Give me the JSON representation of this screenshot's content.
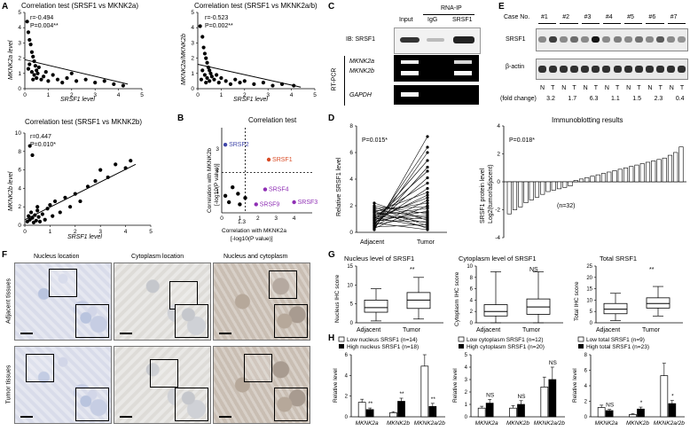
{
  "panels": {
    "A": {
      "letter": "A",
      "plot1": {
        "title": "Correlation test (SRSF1 vs MKNK2a)",
        "r": "r=-0.494",
        "p": "P=0.004**",
        "ylabel": "MKNK2a level",
        "xlabel": "SRSF1 level"
      },
      "plot2": {
        "title": "Correlation test (SRSF1 vs MKNK2a/b)",
        "r": "r=-0.523",
        "p": "P=0.002**",
        "ylabel": "MKNK2a/MKNK2b",
        "xlabel": "SRSF1 level"
      },
      "plot3": {
        "title": "Correlation test (SRSF1 vs MKNK2b)",
        "r": "r=0.447",
        "p": "P=0.010*",
        "ylabel": "MKNK2b level",
        "xlabel": "SRSF1 level"
      }
    },
    "B": {
      "letter": "B",
      "title": "Correlation test",
      "xlabel1": "Correlation with MKNK2a",
      "xlabel2": "[-log10(P value)]",
      "ylabel1": "Correlation with MKNK2b",
      "ylabel2": "[-log10(P value)]",
      "tick13": "1.3"
    },
    "C": {
      "letter": "C",
      "rnaip": "RNA-IP",
      "col_input": "Input",
      "col_igg": "IgG",
      "col_srsf1": "SRSF1",
      "ib": "IB: SRSF1",
      "rtpcr": "RT-PCR",
      "mknk2a": "MKNK2a",
      "mknk2b": "MKNK2b",
      "gapdh": "GAPDH"
    },
    "D": {
      "letter": "D",
      "p": "P=0.015*",
      "ylabel": "Relative SRSF1 level",
      "x1": "Adjacent",
      "x2": "Tumor",
      "bar_title": "Immunoblotting results",
      "bar_p": "P=0.018*",
      "bar_n": "(n=32)",
      "bar_ylabel1": "SRSF1 protein level",
      "bar_ylabel2": "Log2(tumor/adjacent)"
    },
    "E": {
      "letter": "E",
      "case_label": "Case No.",
      "cases": [
        "#1",
        "#2",
        "#3",
        "#4",
        "#5",
        "#6",
        "#7"
      ],
      "srsf1": "SRSF1",
      "actin": "β-actin",
      "fold_label": "(fold change)",
      "folds": [
        "3.2",
        "1.7",
        "6.3",
        "1.1",
        "1.5",
        "2.3",
        "0.4"
      ],
      "nt": [
        "N",
        "T"
      ]
    },
    "F": {
      "letter": "F",
      "cols": [
        "Nucleus location",
        "Cytoplasm location",
        "Nucleus and cytoplasm"
      ],
      "rows": [
        "Adjacent tissues",
        "Tumor tissues"
      ]
    },
    "G": {
      "letter": "G",
      "plots": [
        {
          "title": "Nucleus level of SRSF1",
          "ylabel": "Nucleus IHC score",
          "sig": "**"
        },
        {
          "title": "Cytoplasm level of SRSF1",
          "ylabel": "Cytoplasm IHC score",
          "sig": "NS"
        },
        {
          "title": "Total SRSF1",
          "ylabel": "Total IHC score",
          "sig": "**"
        }
      ],
      "x1": "Adjacent",
      "x2": "Tumor"
    },
    "H": {
      "letter": "H",
      "ylabel": "Relative level",
      "cats": [
        "MKNK2a",
        "MKNK2b",
        "MKNK2a/2b"
      ],
      "plots": [
        {
          "low": "Low nucleus SRSF1 (n=14)",
          "high": "High nucleus SRSF1 (n=18)",
          "sigs": [
            "**",
            "**",
            "**"
          ]
        },
        {
          "low": "Low cytoplasm SRSF1 (n=12)",
          "high": "High cytoplasm SRSF1 (n=20)",
          "sigs": [
            "NS",
            "NS",
            "NS"
          ]
        },
        {
          "low": "Low total SRSF1 (n=9)",
          "high": "High total SRSF1 (n=23)",
          "sigs": [
            "NS",
            "*",
            "*"
          ]
        }
      ]
    }
  },
  "chart_data": [
    {
      "type": "scatter",
      "name": "A1",
      "xlim": [
        0,
        5
      ],
      "ylim": [
        0,
        5
      ],
      "points": [
        [
          0.1,
          4.4
        ],
        [
          0.15,
          3.7
        ],
        [
          0.2,
          3.2
        ],
        [
          0.25,
          2.9
        ],
        [
          0.3,
          2.4
        ],
        [
          0.35,
          2.1
        ],
        [
          0.4,
          1.8
        ],
        [
          0.45,
          1.5
        ],
        [
          0.5,
          1.2
        ],
        [
          0.55,
          1.0
        ],
        [
          0.6,
          1.4
        ],
        [
          0.2,
          1.6
        ],
        [
          0.3,
          1.1
        ],
        [
          0.4,
          0.9
        ],
        [
          0.5,
          0.7
        ],
        [
          0.7,
          0.6
        ],
        [
          0.8,
          0.8
        ],
        [
          0.9,
          1.1
        ],
        [
          1.0,
          0.5
        ],
        [
          1.2,
          0.9
        ],
        [
          1.4,
          0.6
        ],
        [
          1.6,
          0.4
        ],
        [
          1.8,
          0.7
        ],
        [
          2.0,
          1.0
        ],
        [
          2.2,
          0.5
        ],
        [
          2.6,
          0.6
        ],
        [
          3.0,
          0.4
        ],
        [
          3.4,
          0.5
        ],
        [
          3.8,
          0.3
        ],
        [
          4.2,
          0.2
        ],
        [
          0.15,
          1.3
        ],
        [
          0.35,
          0.6
        ]
      ],
      "fit": [
        [
          0,
          1.9
        ],
        [
          4.4,
          0.3
        ]
      ]
    },
    {
      "type": "scatter",
      "name": "A2",
      "xlim": [
        0,
        5
      ],
      "ylim": [
        0,
        5
      ],
      "points": [
        [
          0.1,
          4.1
        ],
        [
          0.2,
          3.4
        ],
        [
          0.25,
          2.7
        ],
        [
          0.3,
          2.3
        ],
        [
          0.35,
          2.0
        ],
        [
          0.4,
          1.7
        ],
        [
          0.45,
          1.4
        ],
        [
          0.5,
          1.2
        ],
        [
          0.55,
          1.0
        ],
        [
          0.6,
          0.8
        ],
        [
          0.2,
          1.2
        ],
        [
          0.3,
          0.9
        ],
        [
          0.4,
          0.7
        ],
        [
          0.5,
          0.5
        ],
        [
          0.7,
          0.6
        ],
        [
          0.8,
          0.9
        ],
        [
          0.9,
          0.4
        ],
        [
          1.0,
          0.7
        ],
        [
          1.2,
          0.5
        ],
        [
          1.4,
          0.3
        ],
        [
          1.6,
          0.6
        ],
        [
          1.8,
          0.4
        ],
        [
          2.0,
          0.5
        ],
        [
          2.4,
          0.3
        ],
        [
          2.8,
          0.4
        ],
        [
          3.2,
          0.2
        ],
        [
          3.6,
          0.3
        ],
        [
          4.1,
          0.2
        ],
        [
          0.15,
          0.6
        ],
        [
          0.35,
          0.4
        ]
      ],
      "fit": [
        [
          0,
          1.6
        ],
        [
          4.4,
          0.1
        ]
      ]
    },
    {
      "type": "scatter",
      "name": "A3",
      "xlim": [
        0,
        5
      ],
      "ylim": [
        0,
        10
      ],
      "points": [
        [
          0.1,
          0.4
        ],
        [
          0.15,
          1.0
        ],
        [
          0.2,
          0.6
        ],
        [
          0.25,
          1.4
        ],
        [
          0.3,
          0.8
        ],
        [
          0.35,
          0.3
        ],
        [
          0.4,
          1.1
        ],
        [
          0.45,
          0.5
        ],
        [
          0.5,
          1.6
        ],
        [
          0.55,
          0.9
        ],
        [
          0.6,
          0.4
        ],
        [
          0.7,
          1.2
        ],
        [
          0.8,
          0.6
        ],
        [
          0.9,
          1.8
        ],
        [
          1.0,
          2.2
        ],
        [
          1.1,
          1.0
        ],
        [
          1.2,
          2.6
        ],
        [
          1.4,
          1.4
        ],
        [
          1.6,
          3.0
        ],
        [
          1.8,
          2.0
        ],
        [
          2.0,
          3.4
        ],
        [
          2.2,
          2.6
        ],
        [
          2.5,
          4.2
        ],
        [
          2.8,
          4.8
        ],
        [
          3.0,
          6.0
        ],
        [
          3.3,
          5.2
        ],
        [
          3.6,
          6.6
        ],
        [
          4.0,
          6.2
        ],
        [
          4.2,
          7.0
        ],
        [
          0.2,
          8.6
        ],
        [
          0.3,
          7.6
        ],
        [
          0.5,
          2.0
        ]
      ],
      "fit": [
        [
          0,
          0.6
        ],
        [
          4.4,
          6.6
        ]
      ]
    },
    {
      "type": "scatter",
      "name": "B",
      "xlim": [
        0,
        5
      ],
      "ylim": [
        0,
        4
      ],
      "points": [
        {
          "label": "SRSF2",
          "x": 0.2,
          "y": 3.2,
          "color": "#3f45a8"
        },
        {
          "label": "SRSF1",
          "x": 2.6,
          "y": 2.5,
          "color": "#d94b25"
        },
        {
          "label": "SRSF4",
          "x": 2.4,
          "y": 1.1,
          "color": "#8f2fb4"
        },
        {
          "label": "SRSF9",
          "x": 1.9,
          "y": 0.4,
          "color": "#8f2fb4"
        },
        {
          "label": "SRSF3",
          "x": 4.0,
          "y": 0.5,
          "color": "#8f2fb4"
        },
        {
          "x": 0.6,
          "y": 1.2,
          "color": "#000000"
        },
        {
          "x": 0.9,
          "y": 0.9,
          "color": "#000000"
        },
        {
          "x": 1.3,
          "y": 0.7,
          "color": "#000000"
        },
        {
          "x": 0.4,
          "y": 0.5,
          "color": "#000000"
        },
        {
          "x": 1.0,
          "y": 0.4,
          "color": "#000000"
        },
        {
          "x": 0.2,
          "y": 0.8,
          "color": "#000000"
        }
      ],
      "cutoff": [
        1.3,
        1.3
      ]
    },
    {
      "type": "paired-line",
      "name": "D1",
      "ylim": [
        0,
        8
      ],
      "x": [
        "Adjacent",
        "Tumor"
      ],
      "pairs": [
        [
          0.2,
          7.2
        ],
        [
          0.5,
          6.4
        ],
        [
          0.3,
          6.0
        ],
        [
          0.8,
          5.4
        ],
        [
          0.4,
          4.9
        ],
        [
          1.0,
          4.6
        ],
        [
          0.6,
          4.1
        ],
        [
          1.2,
          3.7
        ],
        [
          0.7,
          3.3
        ],
        [
          1.5,
          3.0
        ],
        [
          0.9,
          2.8
        ],
        [
          1.1,
          2.6
        ],
        [
          0.5,
          2.4
        ],
        [
          1.6,
          2.2
        ],
        [
          0.3,
          2.0
        ],
        [
          1.8,
          1.9
        ],
        [
          1.3,
          1.8
        ],
        [
          0.8,
          1.6
        ],
        [
          1.4,
          1.5
        ],
        [
          2.0,
          1.4
        ],
        [
          1.0,
          1.3
        ],
        [
          0.6,
          1.2
        ],
        [
          1.7,
          1.1
        ],
        [
          1.2,
          1.0
        ],
        [
          2.2,
          0.9
        ],
        [
          0.9,
          0.8
        ],
        [
          1.5,
          0.7
        ],
        [
          0.4,
          0.6
        ],
        [
          1.9,
          0.5
        ],
        [
          1.1,
          0.4
        ],
        [
          1.6,
          0.3
        ],
        [
          0.7,
          0.2
        ]
      ]
    },
    {
      "type": "bar",
      "name": "D2",
      "ylim": [
        -4,
        4
      ],
      "values": [
        -2.3,
        -2.0,
        -1.8,
        -1.5,
        -1.3,
        -1.1,
        -0.9,
        -0.7,
        -0.6,
        -0.5,
        -0.4,
        -0.3,
        0.1,
        0.2,
        0.3,
        0.4,
        0.5,
        0.6,
        0.7,
        0.8,
        0.9,
        1.0,
        1.1,
        1.2,
        1.3,
        1.4,
        1.5,
        1.6,
        1.7,
        1.9,
        2.1,
        2.5
      ]
    },
    {
      "type": "box",
      "name": "G1",
      "ylim": [
        0,
        15
      ],
      "yticks": [
        0,
        5,
        10,
        15
      ],
      "boxes": [
        {
          "min": 0.5,
          "q1": 2.8,
          "med": 4.0,
          "q3": 6.0,
          "max": 9.0
        },
        {
          "min": 1.0,
          "q1": 3.8,
          "med": 6.0,
          "q3": 8.0,
          "max": 12.0
        }
      ]
    },
    {
      "type": "box",
      "name": "G2",
      "ylim": [
        0,
        10
      ],
      "yticks": [
        0,
        2,
        4,
        6,
        8,
        10
      ],
      "boxes": [
        {
          "min": 0.0,
          "q1": 1.2,
          "med": 2.0,
          "q3": 3.2,
          "max": 9.0
        },
        {
          "min": 0.0,
          "q1": 1.5,
          "med": 2.8,
          "q3": 4.2,
          "max": 9.0
        }
      ]
    },
    {
      "type": "box",
      "name": "G3",
      "ylim": [
        0,
        25
      ],
      "yticks": [
        0,
        5,
        10,
        15,
        20,
        25
      ],
      "boxes": [
        {
          "min": 1.0,
          "q1": 4.0,
          "med": 6.0,
          "q3": 8.5,
          "max": 13.0
        },
        {
          "min": 3.0,
          "q1": 6.5,
          "med": 8.5,
          "q3": 11.0,
          "max": 16.0
        }
      ]
    },
    {
      "type": "bar",
      "name": "H1",
      "ylim": [
        0,
        6
      ],
      "yticks": [
        0,
        2,
        4,
        6
      ],
      "categories": [
        "MKNK2a",
        "MKNK2b",
        "MKNK2a/2b"
      ],
      "series": [
        {
          "name": "Low nucleus SRSF1 (n=14)",
          "values": [
            1.4,
            0.4,
            4.9
          ],
          "err": [
            0.3,
            0.1,
            1.1
          ]
        },
        {
          "name": "High nucleus SRSF1 (n=18)",
          "values": [
            0.7,
            1.5,
            1.0
          ],
          "err": [
            0.15,
            0.3,
            0.3
          ]
        }
      ]
    },
    {
      "type": "bar",
      "name": "H2",
      "ylim": [
        0,
        5
      ],
      "yticks": [
        0,
        1,
        2,
        3,
        4,
        5
      ],
      "categories": [
        "MKNK2a",
        "MKNK2b",
        "MKNK2a/2b"
      ],
      "series": [
        {
          "name": "Low cytoplasm SRSF1 (n=12)",
          "values": [
            0.7,
            0.7,
            2.4
          ],
          "err": [
            0.15,
            0.2,
            0.8
          ]
        },
        {
          "name": "High cytoplasm SRSF1 (n=20)",
          "values": [
            1.1,
            1.0,
            3.0
          ],
          "err": [
            0.3,
            0.3,
            1.0
          ]
        }
      ]
    },
    {
      "type": "bar",
      "name": "H3",
      "ylim": [
        0,
        8
      ],
      "yticks": [
        0,
        2,
        4,
        6,
        8
      ],
      "categories": [
        "MKNK2a",
        "MKNK2b",
        "MKNK2a/2b"
      ],
      "series": [
        {
          "name": "Low total SRSF1 (n=9)",
          "values": [
            1.2,
            0.3,
            5.3
          ],
          "err": [
            0.3,
            0.1,
            1.6
          ]
        },
        {
          "name": "High total SRSF1 (n=23)",
          "values": [
            0.8,
            1.0,
            1.7
          ],
          "err": [
            0.15,
            0.25,
            0.4
          ]
        }
      ]
    }
  ]
}
